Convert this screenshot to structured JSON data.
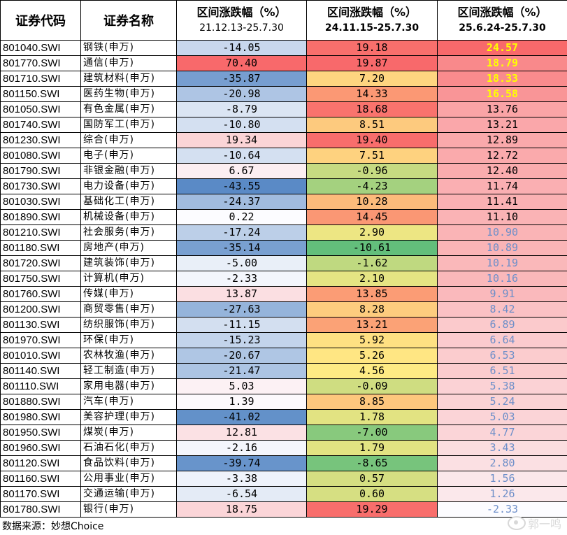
{
  "headers": {
    "code": "证券代码",
    "name": "证券名称",
    "period1_title": "区间涨跌幅（%）",
    "period1_range": "21.12.13-25.7.30",
    "period2_title": "区间涨跌幅（%）",
    "period2_range": "24.11.15-25.7.30",
    "period3_title": "区间涨跌幅（%）",
    "period3_range": "25.6.24-25.7.30"
  },
  "rows": [
    {
      "code": "801040.SWI",
      "name": "钢铁(申万)",
      "p1": "-14.05",
      "p2": "19.18",
      "p3": "24.57"
    },
    {
      "code": "801770.SWI",
      "name": "通信(申万)",
      "p1": "70.40",
      "p2": "19.87",
      "p3": "18.79"
    },
    {
      "code": "801710.SWI",
      "name": "建筑材料(申万)",
      "p1": "-35.87",
      "p2": "7.20",
      "p3": "18.33"
    },
    {
      "code": "801150.SWI",
      "name": "医药生物(申万)",
      "p1": "-20.98",
      "p2": "14.33",
      "p3": "16.58"
    },
    {
      "code": "801050.SWI",
      "name": "有色金属(申万)",
      "p1": "-8.79",
      "p2": "18.68",
      "p3": "13.76"
    },
    {
      "code": "801740.SWI",
      "name": "国防军工(申万)",
      "p1": "-10.80",
      "p2": "8.51",
      "p3": "13.21"
    },
    {
      "code": "801230.SWI",
      "name": "综合(申万)",
      "p1": "19.34",
      "p2": "19.40",
      "p3": "12.89"
    },
    {
      "code": "801080.SWI",
      "name": "电子(申万)",
      "p1": "-10.64",
      "p2": "7.51",
      "p3": "12.72"
    },
    {
      "code": "801790.SWI",
      "name": "非银金融(申万)",
      "p1": "6.67",
      "p2": "-0.96",
      "p3": "12.40"
    },
    {
      "code": "801730.SWI",
      "name": "电力设备(申万)",
      "p1": "-43.55",
      "p2": "-4.23",
      "p3": "11.74"
    },
    {
      "code": "801030.SWI",
      "name": "基础化工(申万)",
      "p1": "-24.37",
      "p2": "10.28",
      "p3": "11.41"
    },
    {
      "code": "801890.SWI",
      "name": "机械设备(申万)",
      "p1": "0.22",
      "p2": "14.45",
      "p3": "11.10"
    },
    {
      "code": "801210.SWI",
      "name": "社会服务(申万)",
      "p1": "-17.24",
      "p2": "2.90",
      "p3": "10.90"
    },
    {
      "code": "801180.SWI",
      "name": "房地产(申万)",
      "p1": "-35.14",
      "p2": "-10.61",
      "p3": "10.89"
    },
    {
      "code": "801720.SWI",
      "name": "建筑装饰(申万)",
      "p1": "-5.00",
      "p2": "-1.62",
      "p3": "10.19"
    },
    {
      "code": "801750.SWI",
      "name": "计算机(申万)",
      "p1": "-2.33",
      "p2": "2.10",
      "p3": "10.16"
    },
    {
      "code": "801760.SWI",
      "name": "传媒(申万)",
      "p1": "13.87",
      "p2": "13.85",
      "p3": "9.91"
    },
    {
      "code": "801200.SWI",
      "name": "商贸零售(申万)",
      "p1": "-27.63",
      "p2": "8.28",
      "p3": "8.42"
    },
    {
      "code": "801130.SWI",
      "name": "纺织服饰(申万)",
      "p1": "-11.15",
      "p2": "13.21",
      "p3": "6.89"
    },
    {
      "code": "801970.SWI",
      "name": "环保(申万)",
      "p1": "-15.23",
      "p2": "5.92",
      "p3": "6.64"
    },
    {
      "code": "801010.SWI",
      "name": "农林牧渔(申万)",
      "p1": "-20.67",
      "p2": "5.26",
      "p3": "6.53"
    },
    {
      "code": "801140.SWI",
      "name": "轻工制造(申万)",
      "p1": "-21.47",
      "p2": "4.56",
      "p3": "6.51"
    },
    {
      "code": "801110.SWI",
      "name": "家用电器(申万)",
      "p1": "5.03",
      "p2": "-0.09",
      "p3": "5.38"
    },
    {
      "code": "801880.SWI",
      "name": "汽车(申万)",
      "p1": "1.39",
      "p2": "8.85",
      "p3": "5.24"
    },
    {
      "code": "801980.SWI",
      "name": "美容护理(申万)",
      "p1": "-41.02",
      "p2": "1.78",
      "p3": "5.03"
    },
    {
      "code": "801950.SWI",
      "name": "煤炭(申万)",
      "p1": "12.81",
      "p2": "-7.00",
      "p3": "4.77"
    },
    {
      "code": "801960.SWI",
      "name": "石油石化(申万)",
      "p1": "-2.16",
      "p2": "1.79",
      "p3": "3.43"
    },
    {
      "code": "801120.SWI",
      "name": "食品饮料(申万)",
      "p1": "-39.74",
      "p2": "-8.65",
      "p3": "2.80"
    },
    {
      "code": "801160.SWI",
      "name": "公用事业(申万)",
      "p1": "-3.38",
      "p2": "0.57",
      "p3": "1.56"
    },
    {
      "code": "801170.SWI",
      "name": "交通运输(申万)",
      "p1": "-6.54",
      "p2": "0.60",
      "p3": "1.26"
    },
    {
      "code": "801780.SWI",
      "name": "银行(申万)",
      "p1": "18.75",
      "p2": "19.29",
      "p3": "-2.33"
    }
  ],
  "colors": {
    "p3_highlight_text": "#ffff00",
    "p3_normal_text": "#000000",
    "p3_low_text": "#6e8fc9"
  },
  "footer": {
    "source": "数据来源：妙想Choice"
  },
  "watermark": {
    "text": "郭一鸣"
  }
}
